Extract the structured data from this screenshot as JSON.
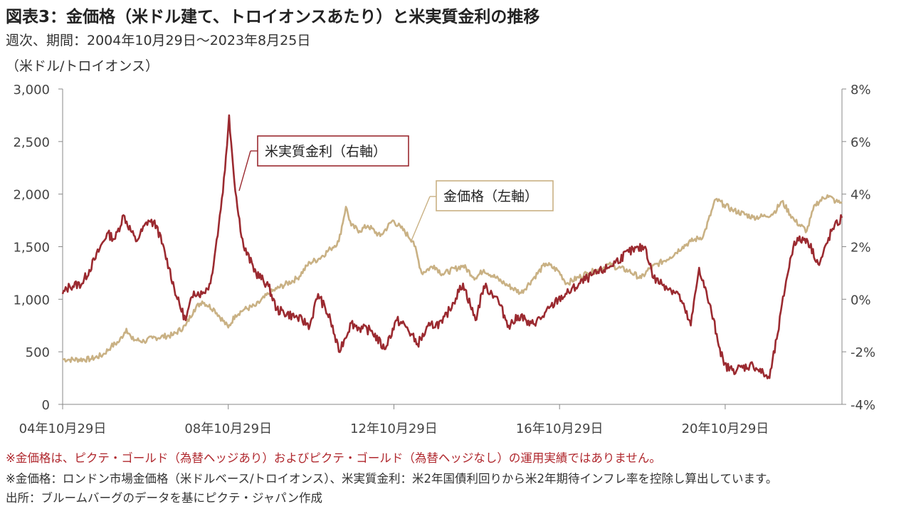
{
  "title": "図表3：金価格（米ドル建て、トロイオンスあたり）と米実質金利の推移",
  "subtitle": "週次、期間：2004年10月29日～2023年8月25日",
  "unit_label": "（米ドル/トロイオンス）",
  "notes": [
    "※金価格は、ピクテ・ゴールド（為替ヘッジあり）およびピクテ・ゴールド（為替ヘッジなし）の運用実績ではありません。",
    "※金価格：ロンドン市場金価格（米ドルベース/トロイオンス）、米実質金利：米2年国債利回りから米2年期待インフレ率を控除し算出しています。",
    "出所：ブルームバーグのデータを基にピクテ・ジャパン作成"
  ],
  "colors": {
    "gold": "#c9b184",
    "real_rate": "#9b2a30",
    "axis": "#888888",
    "note_red": "#b0282e"
  },
  "chart_data": {
    "type": "line",
    "x_tick_labels": [
      "04年10月29日",
      "08年10月29日",
      "12年10月29日",
      "16年10月29日",
      "20年10月29日"
    ],
    "x_range": [
      2004.83,
      2023.65
    ],
    "x_ticks": [
      2004.83,
      2008.83,
      2012.83,
      2016.83,
      2020.83
    ],
    "y_left": {
      "ylim": [
        0,
        3000
      ],
      "ticks": [
        0,
        500,
        1000,
        1500,
        2000,
        2500,
        3000
      ],
      "tick_labels": [
        "0",
        "500",
        "1,000",
        "1,500",
        "2,000",
        "2,500",
        "3,000"
      ]
    },
    "y_right": {
      "ylim": [
        -4,
        8
      ],
      "ticks": [
        -4,
        -2,
        0,
        2,
        4,
        6,
        8
      ],
      "tick_labels": [
        "-4%",
        "-2%",
        "0%",
        "2%",
        "4%",
        "6%",
        "8%"
      ]
    },
    "series": [
      {
        "name": "金価格（左軸）",
        "axis": "left",
        "x": [
          2004.83,
          2005.0,
          2005.5,
          2005.8,
          2006.0,
          2006.2,
          2006.37,
          2006.5,
          2006.8,
          2007.0,
          2007.5,
          2007.8,
          2008.0,
          2008.2,
          2008.5,
          2008.83,
          2009.0,
          2009.2,
          2009.5,
          2009.8,
          2010.0,
          2010.5,
          2010.8,
          2011.0,
          2011.3,
          2011.5,
          2011.67,
          2011.8,
          2012.0,
          2012.2,
          2012.5,
          2012.8,
          2013.0,
          2013.3,
          2013.5,
          2013.8,
          2014.0,
          2014.5,
          2014.8,
          2015.0,
          2015.5,
          2015.9,
          2016.2,
          2016.5,
          2016.8,
          2017.0,
          2017.5,
          2017.8,
          2018.0,
          2018.5,
          2018.8,
          2019.0,
          2019.5,
          2019.8,
          2020.0,
          2020.3,
          2020.6,
          2020.8,
          2021.0,
          2021.5,
          2021.8,
          2022.0,
          2022.2,
          2022.5,
          2022.8,
          2023.0,
          2023.3,
          2023.5,
          2023.65
        ],
        "values": [
          430,
          425,
          430,
          470,
          550,
          600,
          720,
          620,
          600,
          630,
          660,
          750,
          900,
          980,
          900,
          730,
          850,
          900,
          940,
          1050,
          1100,
          1200,
          1350,
          1380,
          1480,
          1550,
          1880,
          1700,
          1650,
          1700,
          1600,
          1750,
          1680,
          1550,
          1250,
          1320,
          1240,
          1320,
          1200,
          1280,
          1150,
          1060,
          1200,
          1340,
          1270,
          1150,
          1250,
          1280,
          1330,
          1270,
          1200,
          1290,
          1400,
          1500,
          1550,
          1600,
          1950,
          1900,
          1850,
          1780,
          1790,
          1820,
          1930,
          1750,
          1650,
          1900,
          1990,
          1930,
          1915
        ]
      },
      {
        "name": "米実質金利（右軸）",
        "axis": "right",
        "x": [
          2004.83,
          2005.0,
          2005.3,
          2005.6,
          2005.9,
          2006.1,
          2006.3,
          2006.6,
          2006.9,
          2007.1,
          2007.4,
          2007.6,
          2007.8,
          2008.0,
          2008.2,
          2008.4,
          2008.6,
          2008.75,
          2008.85,
          2008.95,
          2009.05,
          2009.2,
          2009.5,
          2009.8,
          2010.0,
          2010.5,
          2010.8,
          2011.0,
          2011.3,
          2011.5,
          2011.8,
          2012.0,
          2012.3,
          2012.6,
          2012.9,
          2013.1,
          2013.4,
          2013.7,
          2014.0,
          2014.5,
          2014.8,
          2015.0,
          2015.3,
          2015.6,
          2015.9,
          2016.1,
          2016.4,
          2016.8,
          2017.0,
          2017.5,
          2018.0,
          2018.5,
          2018.9,
          2019.1,
          2019.4,
          2019.7,
          2020.0,
          2020.2,
          2020.5,
          2020.8,
          2021.0,
          2021.5,
          2021.8,
          2021.9,
          2022.1,
          2022.3,
          2022.5,
          2022.8,
          2023.1,
          2023.4,
          2023.65
        ],
        "values": [
          0.2,
          0.5,
          0.6,
          1.5,
          2.5,
          2.3,
          3.2,
          2.2,
          3.0,
          2.8,
          1.2,
          0.0,
          -0.8,
          0.3,
          0.2,
          0.6,
          2.8,
          4.9,
          7.0,
          5.0,
          3.5,
          2.0,
          1.0,
          0.5,
          -0.4,
          -0.7,
          -1.0,
          0.2,
          -0.8,
          -2.0,
          -0.9,
          -1.1,
          -1.2,
          -1.9,
          -0.8,
          -1.0,
          -1.7,
          -1.0,
          -0.9,
          0.6,
          -0.8,
          0.5,
          0.1,
          -1.0,
          -0.6,
          -1.0,
          -0.7,
          0.0,
          0.2,
          0.8,
          1.2,
          1.8,
          2.0,
          0.8,
          0.5,
          0.2,
          -1.0,
          1.2,
          -0.5,
          -2.5,
          -2.7,
          -2.5,
          -2.9,
          -3.0,
          -1.3,
          0.7,
          2.2,
          2.3,
          1.3,
          2.6,
          3.1
        ]
      }
    ],
    "annotations": [
      "米実質金利（右軸）",
      "金価格（左軸）"
    ],
    "grid": false,
    "legend": "callouts"
  }
}
